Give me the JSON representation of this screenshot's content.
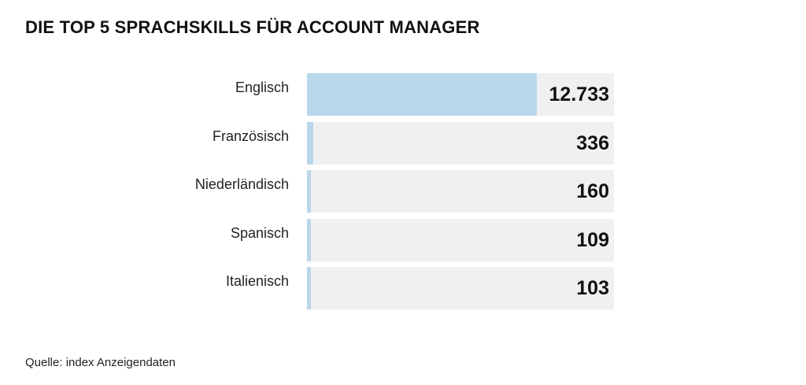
{
  "chart_data": {
    "type": "bar",
    "orientation": "horizontal",
    "title": "DIE TOP 5 SPRACHSKILLS FÜR ACCOUNT MANAGER",
    "categories": [
      "Englisch",
      "Französisch",
      "Niederländisch",
      "Spanisch",
      "Italienisch"
    ],
    "values": [
      12733,
      336,
      160,
      109,
      103
    ],
    "value_labels": [
      "12.733",
      "336",
      "160",
      "109",
      "103"
    ],
    "xlim": [
      0,
      17000
    ],
    "grid": false,
    "legend": "none",
    "colors": {
      "bar_fill": "#b9d7ea",
      "track": "#eff0f1"
    }
  },
  "source": "Quelle: index Anzeigendaten"
}
